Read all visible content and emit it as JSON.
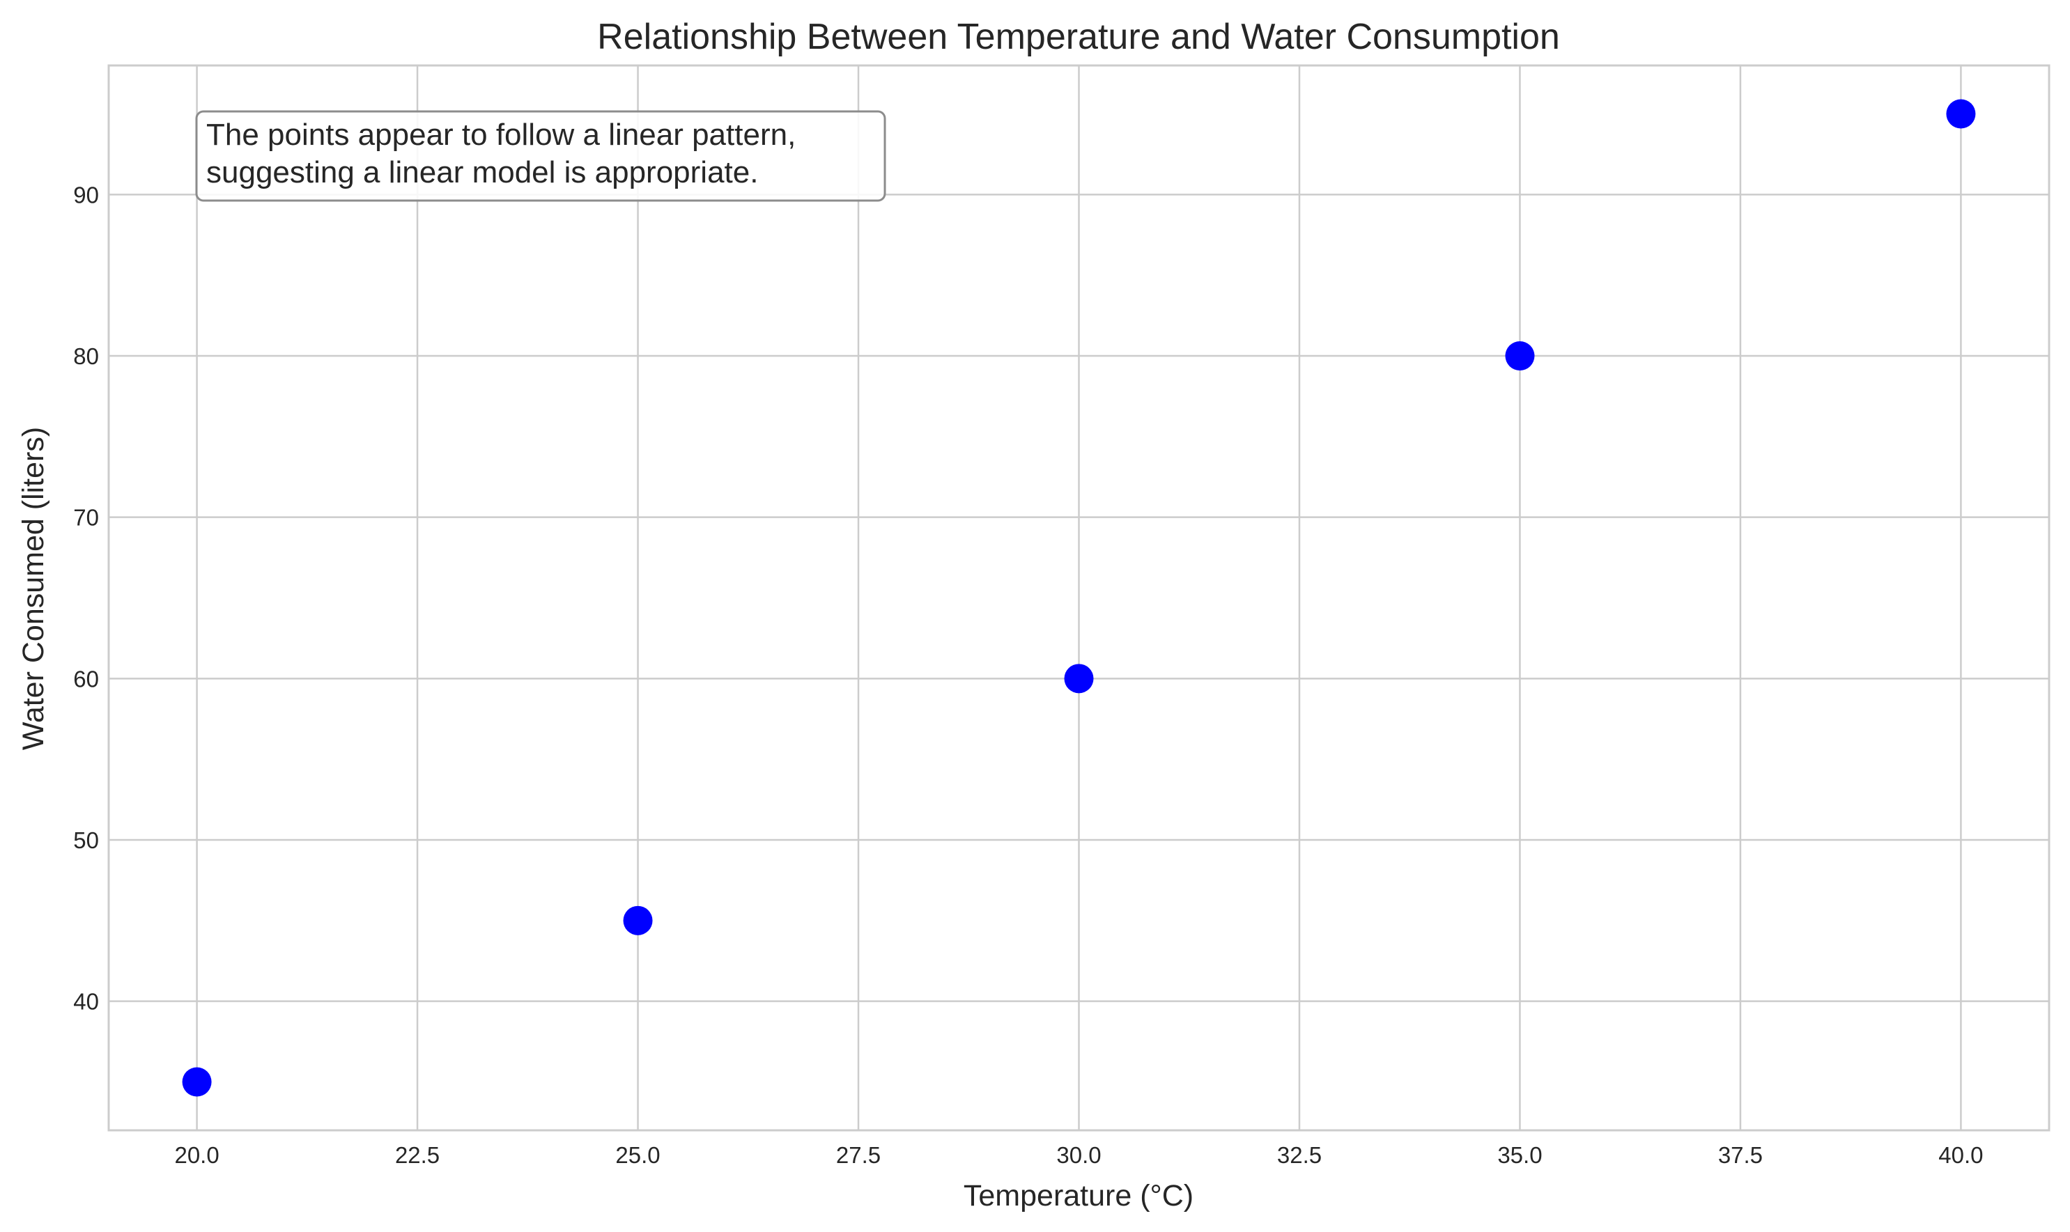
{
  "chart_data": {
    "type": "scatter",
    "title": "Relationship Between Temperature and Water Consumption",
    "xlabel": "Temperature (°C)",
    "ylabel": "Water Consumed (liters)",
    "x": [
      20,
      25,
      30,
      35,
      40
    ],
    "y": [
      35,
      45,
      60,
      80,
      95
    ],
    "xlim": [
      19,
      41
    ],
    "ylim": [
      32,
      98
    ],
    "xticks": [
      20.0,
      22.5,
      25.0,
      27.5,
      30.0,
      32.5,
      35.0,
      37.5,
      40.0
    ],
    "xtick_labels": [
      "20.0",
      "22.5",
      "25.0",
      "27.5",
      "30.0",
      "32.5",
      "35.0",
      "37.5",
      "40.0"
    ],
    "yticks": [
      40,
      50,
      60,
      70,
      80,
      90
    ],
    "ytick_labels": [
      "40",
      "50",
      "60",
      "70",
      "80",
      "90"
    ],
    "grid": true,
    "marker_color": "#0000ff",
    "annotation": {
      "lines": [
        "The points appear to follow a linear pattern,",
        "suggesting a linear model is appropriate."
      ],
      "placement": "top-left"
    }
  }
}
